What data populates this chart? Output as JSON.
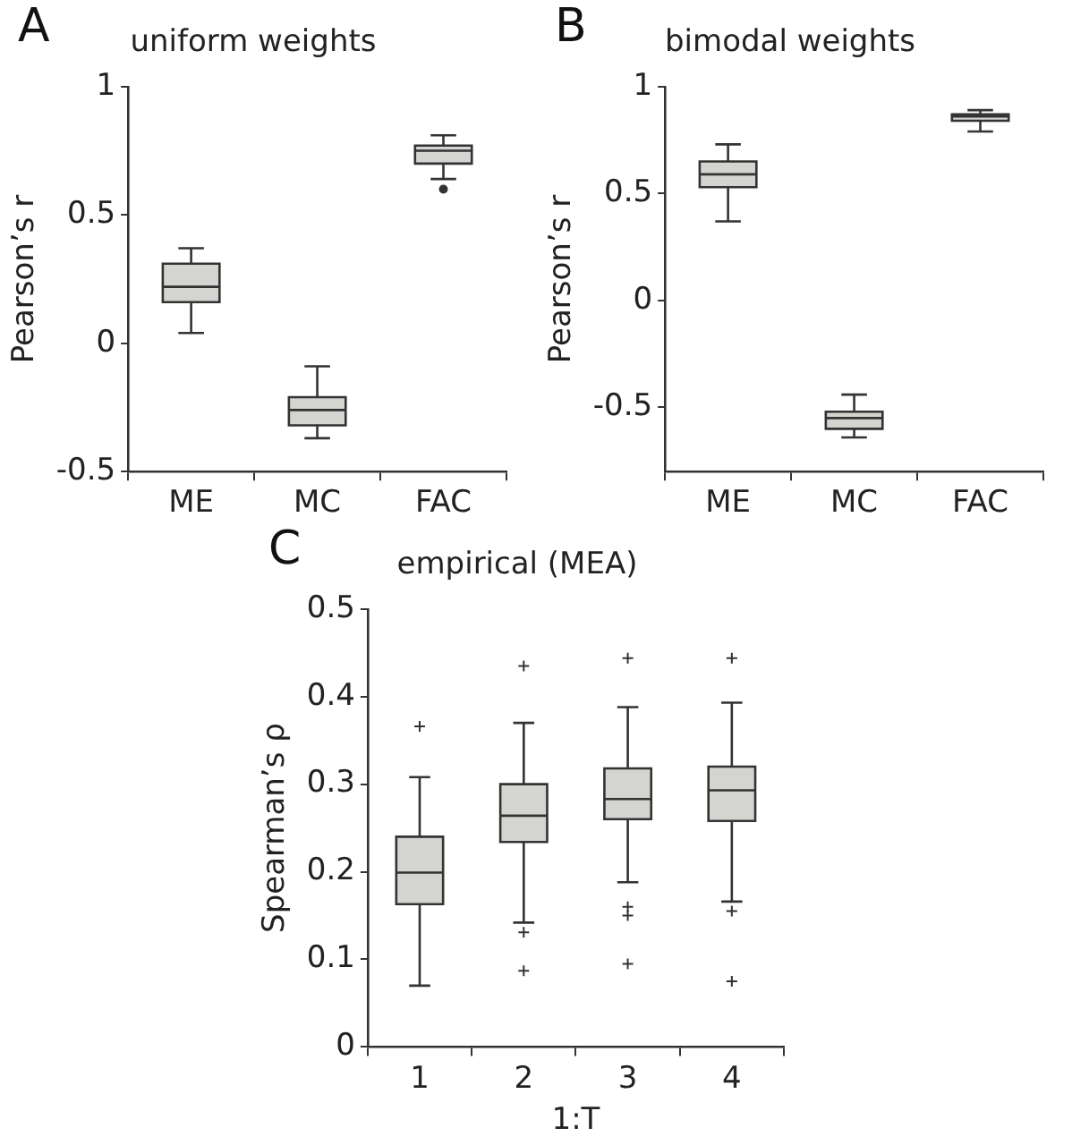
{
  "chart_data": [
    {
      "type": "box",
      "title": "uniform weights",
      "ylabel": "Pearson’s r",
      "annotations": [
        "A"
      ],
      "categories": [
        "ME",
        "MC",
        "FAC"
      ],
      "color": "#d4d4d0",
      "marker": "circle",
      "ylim": [
        -0.5,
        1
      ],
      "yticks": [
        -0.5,
        0,
        0.5,
        1
      ],
      "grid": false,
      "boxes": [
        {
          "low": 0.04,
          "q1": 0.16,
          "median": 0.22,
          "q3": 0.31,
          "high": 0.37
        },
        {
          "low": -0.37,
          "q1": -0.32,
          "median": -0.26,
          "q3": -0.21,
          "high": -0.09
        },
        {
          "low": 0.64,
          "q1": 0.7,
          "median": 0.75,
          "q3": 0.77,
          "high": 0.81,
          "outliers": [
            0.6
          ]
        }
      ]
    },
    {
      "type": "box",
      "title": "bimodal weights",
      "ylabel": "Pearson’s r",
      "annotations": [
        "B"
      ],
      "categories": [
        "ME",
        "MC",
        "FAC"
      ],
      "color": "#d4d4d0",
      "ylim": [
        -0.8,
        1
      ],
      "yticks": [
        -0.5,
        0,
        0.5,
        1
      ],
      "grid": false,
      "boxes": [
        {
          "low": 0.37,
          "q1": 0.53,
          "median": 0.59,
          "q3": 0.65,
          "high": 0.73
        },
        {
          "low": -0.64,
          "q1": -0.6,
          "median": -0.55,
          "q3": -0.52,
          "high": -0.44
        },
        {
          "low": 0.79,
          "q1": 0.84,
          "median": 0.86,
          "q3": 0.87,
          "high": 0.89
        }
      ]
    },
    {
      "type": "box",
      "title": "empirical (MEA)",
      "xlabel": "1:T",
      "ylabel": "Spearman’s ρ",
      "annotations": [
        "C"
      ],
      "categories": [
        "1",
        "2",
        "3",
        "4"
      ],
      "color": "#d4d4d0",
      "marker": "cross",
      "ylim": [
        0,
        0.5
      ],
      "yticks": [
        0,
        0.1,
        0.2,
        0.3,
        0.4,
        0.5
      ],
      "grid": false,
      "boxes": [
        {
          "low": 0.07,
          "q1": 0.163,
          "median": 0.199,
          "q3": 0.24,
          "high": 0.308,
          "outliers": [
            0.366
          ]
        },
        {
          "low": 0.142,
          "q1": 0.234,
          "median": 0.264,
          "q3": 0.3,
          "high": 0.37,
          "outliers": [
            0.435,
            0.131,
            0.087
          ]
        },
        {
          "low": 0.188,
          "q1": 0.26,
          "median": 0.283,
          "q3": 0.318,
          "high": 0.388,
          "outliers": [
            0.444,
            0.16,
            0.15,
            0.095
          ]
        },
        {
          "low": 0.166,
          "q1": 0.258,
          "median": 0.293,
          "q3": 0.32,
          "high": 0.393,
          "outliers": [
            0.444,
            0.155,
            0.075
          ]
        }
      ]
    }
  ]
}
